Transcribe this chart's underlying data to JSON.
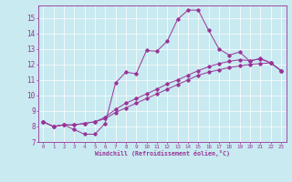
{
  "xlabel": "Windchill (Refroidissement éolien,°C)",
  "bg_color": "#c8eaf0",
  "line_color": "#993399",
  "xlim": [
    -0.5,
    23.5
  ],
  "ylim": [
    7.0,
    15.8
  ],
  "yticks": [
    7,
    8,
    9,
    10,
    11,
    12,
    13,
    14,
    15
  ],
  "xticks": [
    0,
    1,
    2,
    3,
    4,
    5,
    6,
    7,
    8,
    9,
    10,
    11,
    12,
    13,
    14,
    15,
    16,
    17,
    18,
    19,
    20,
    21,
    22,
    23
  ],
  "series": [
    [
      8.3,
      8.0,
      8.1,
      7.8,
      7.5,
      7.5,
      8.2,
      10.8,
      11.5,
      11.4,
      12.9,
      12.85,
      13.5,
      14.9,
      15.5,
      15.5,
      14.2,
      13.0,
      12.6,
      12.8,
      12.2,
      12.4,
      12.1,
      11.6
    ],
    [
      8.3,
      8.0,
      8.1,
      8.1,
      8.2,
      8.3,
      8.5,
      8.9,
      9.2,
      9.5,
      9.8,
      10.1,
      10.4,
      10.7,
      11.0,
      11.3,
      11.5,
      11.65,
      11.8,
      11.9,
      12.0,
      12.05,
      12.1,
      11.6
    ],
    [
      8.3,
      8.0,
      8.1,
      8.1,
      8.2,
      8.3,
      8.6,
      9.1,
      9.5,
      9.8,
      10.1,
      10.4,
      10.75,
      11.0,
      11.3,
      11.6,
      11.85,
      12.05,
      12.2,
      12.3,
      12.25,
      12.35,
      12.1,
      11.6
    ]
  ]
}
